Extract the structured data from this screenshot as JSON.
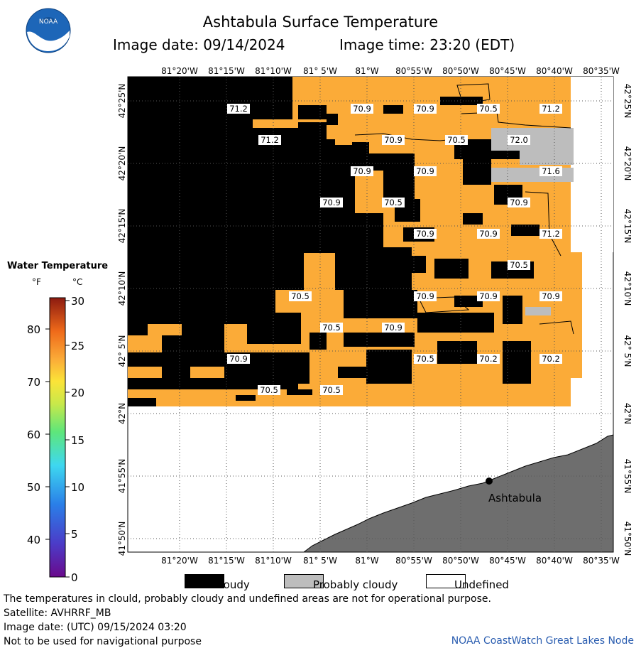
{
  "header": {
    "title": "Ashtabula Surface Temperature",
    "image_date": "Image date: 09/14/2024",
    "image_time": "Image time: 23:20 (EDT)",
    "logo_text": "NOAA"
  },
  "map": {
    "longitude_labels": [
      "81°20'W",
      "81°15'W",
      "81°10'W",
      "81° 5'W",
      "81°W",
      "80°55'W",
      "80°50'W",
      "80°45'W",
      "80°40'W",
      "80°35'W"
    ],
    "latitude_labels": [
      "42°25'N",
      "42°20'N",
      "42°15'N",
      "42°10'N",
      "42° 5'N",
      "42°N",
      "41°55'N",
      "41°50'N"
    ],
    "temperature_labels": [
      "71.2",
      "70.9",
      "70.9",
      "70.5",
      "71.2",
      "71.2",
      "70.9",
      "70.5",
      "72.0",
      "70.9",
      "70.9",
      "71.6",
      "70.9",
      "70.5",
      "70.9",
      "70.9",
      "70.9",
      "71.2",
      "70.5",
      "70.5",
      "70.9",
      "70.9",
      "70.9",
      "70.5",
      "70.9",
      "70.9",
      "70.5",
      "70.2",
      "70.2",
      "70.5",
      "70.5"
    ],
    "city": "Ashtabula",
    "colors": {
      "water_warm": "#fbab38",
      "cloudy": "#000000",
      "probably_cloudy": "#bdbdbd",
      "land": "#6e6e6e",
      "undefined": "#ffffff"
    }
  },
  "scale": {
    "title": "Water Temperature",
    "unit_f": "°F",
    "unit_c": "°C",
    "f_ticks": [
      "80",
      "70",
      "60",
      "50",
      "40"
    ],
    "c_ticks": [
      "30",
      "25",
      "20",
      "15",
      "10",
      "5",
      "0"
    ]
  },
  "legend": {
    "items": [
      {
        "label": "Cloudy",
        "color": "#000000"
      },
      {
        "label": "Probably cloudy",
        "color": "#bdbdbd"
      },
      {
        "label": "Undefined",
        "color": "#ffffff"
      }
    ]
  },
  "footer": {
    "line1": "The temperatures in clould, probably cloudy and undefined areas are not for operational purpose.",
    "line2": "Satellite: AVHRRF_MB",
    "line3": "Image date: (UTC) 09/15/2024  03:20",
    "line4": "Not to be used for navigational purpose",
    "credit": "NOAA CoastWatch Great Lakes Node"
  }
}
